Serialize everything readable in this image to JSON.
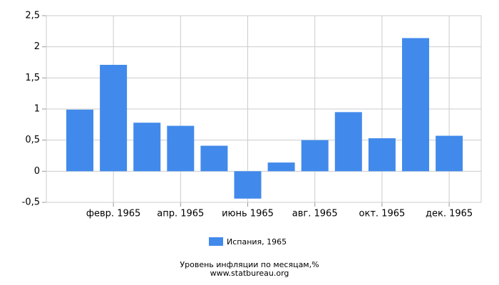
{
  "chart_data": {
    "type": "bar",
    "title": "Уровень инфляции по месяцам,%",
    "source": "www.statbureau.org",
    "categories": [
      null,
      "февр. 1965",
      null,
      "апр. 1965",
      null,
      "июнь 1965",
      null,
      "авг. 1965",
      null,
      "окт. 1965",
      null,
      "дек. 1965"
    ],
    "series": [
      {
        "name": "Испания, 1965",
        "color": "#418aeb",
        "values": [
          0.99,
          1.71,
          0.78,
          0.73,
          0.41,
          -0.44,
          0.14,
          0.5,
          0.95,
          0.53,
          2.14,
          0.57
        ]
      }
    ],
    "ylim": [
      -0.5,
      2.5
    ],
    "yticks": [
      {
        "value": -0.5,
        "label": "-0,5"
      },
      0,
      {
        "value": 0.5,
        "label": "0,5"
      },
      1,
      {
        "value": 1.5,
        "label": "1,5"
      },
      2,
      {
        "value": 2.5,
        "label": "2,5"
      }
    ],
    "grid": true
  }
}
